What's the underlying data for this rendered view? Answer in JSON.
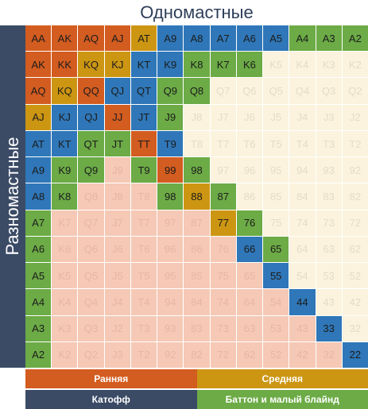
{
  "header": {
    "top_title": "Одномастные",
    "side_title": "Разномастные"
  },
  "tiers": {
    "early": {
      "label": "Ранняя",
      "color": "#d35c20"
    },
    "middle": {
      "label": "Средняя",
      "color": "#cc9613"
    },
    "cutoff": {
      "label": "Катофф",
      "color": "#2f77b8"
    },
    "button": {
      "label": "Баттон и малый блайнд",
      "color": "#6cab46"
    }
  },
  "grid": {
    "rows": [
      {
        "cells": [
          {
            "label": "AA",
            "tier": "early"
          },
          {
            "label": "AK",
            "tier": "early"
          },
          {
            "label": "AQ",
            "tier": "early"
          },
          {
            "label": "AJ",
            "tier": "early"
          },
          {
            "label": "AT",
            "tier": "middle"
          },
          {
            "label": "A9",
            "tier": "cutoff"
          },
          {
            "label": "A8",
            "tier": "cutoff"
          },
          {
            "label": "A7",
            "tier": "cutoff"
          },
          {
            "label": "A6",
            "tier": "cutoff"
          },
          {
            "label": "A5",
            "tier": "cutoff"
          },
          {
            "label": "A4",
            "tier": "button"
          },
          {
            "label": "A3",
            "tier": "button"
          },
          {
            "label": "A2",
            "tier": "button"
          }
        ]
      },
      {
        "cells": [
          {
            "label": "AK",
            "tier": "early"
          },
          {
            "label": "KK",
            "tier": "early"
          },
          {
            "label": "KQ",
            "tier": "middle"
          },
          {
            "label": "KJ",
            "tier": "middle"
          },
          {
            "label": "KT",
            "tier": "cutoff"
          },
          {
            "label": "K9",
            "tier": "cutoff"
          },
          {
            "label": "K8",
            "tier": "button"
          },
          {
            "label": "K7",
            "tier": "button"
          },
          {
            "label": "K6",
            "tier": "button"
          },
          {
            "label": "K5",
            "tier": "foldsuited"
          },
          {
            "label": "K4",
            "tier": "foldsuited"
          },
          {
            "label": "K3",
            "tier": "foldsuited"
          },
          {
            "label": "K2",
            "tier": "foldsuited"
          }
        ]
      },
      {
        "cells": [
          {
            "label": "AQ",
            "tier": "early"
          },
          {
            "label": "KQ",
            "tier": "middle"
          },
          {
            "label": "QQ",
            "tier": "early"
          },
          {
            "label": "QJ",
            "tier": "cutoff"
          },
          {
            "label": "QT",
            "tier": "cutoff"
          },
          {
            "label": "Q9",
            "tier": "button"
          },
          {
            "label": "Q8",
            "tier": "button"
          },
          {
            "label": "Q7",
            "tier": "foldsuited"
          },
          {
            "label": "Q6",
            "tier": "foldsuited"
          },
          {
            "label": "Q5",
            "tier": "foldsuited"
          },
          {
            "label": "Q4",
            "tier": "foldsuited"
          },
          {
            "label": "Q3",
            "tier": "foldsuited"
          },
          {
            "label": "Q2",
            "tier": "foldsuited"
          }
        ]
      },
      {
        "cells": [
          {
            "label": "AJ",
            "tier": "middle"
          },
          {
            "label": "KJ",
            "tier": "cutoff"
          },
          {
            "label": "QJ",
            "tier": "cutoff"
          },
          {
            "label": "JJ",
            "tier": "early"
          },
          {
            "label": "JT",
            "tier": "cutoff"
          },
          {
            "label": "J9",
            "tier": "button"
          },
          {
            "label": "J8",
            "tier": "foldsuited"
          },
          {
            "label": "J7",
            "tier": "foldsuited"
          },
          {
            "label": "J6",
            "tier": "foldsuited"
          },
          {
            "label": "J5",
            "tier": "foldsuited"
          },
          {
            "label": "J4",
            "tier": "foldsuited"
          },
          {
            "label": "J3",
            "tier": "foldsuited"
          },
          {
            "label": "J2",
            "tier": "foldsuited"
          }
        ]
      },
      {
        "cells": [
          {
            "label": "AT",
            "tier": "cutoff"
          },
          {
            "label": "KT",
            "tier": "cutoff"
          },
          {
            "label": "QT",
            "tier": "button"
          },
          {
            "label": "JT",
            "tier": "button"
          },
          {
            "label": "TT",
            "tier": "early"
          },
          {
            "label": "T9",
            "tier": "cutoff"
          },
          {
            "label": "T8",
            "tier": "foldsuited"
          },
          {
            "label": "T7",
            "tier": "foldsuited"
          },
          {
            "label": "T6",
            "tier": "foldsuited"
          },
          {
            "label": "T5",
            "tier": "foldsuited"
          },
          {
            "label": "T4",
            "tier": "foldsuited"
          },
          {
            "label": "T3",
            "tier": "foldsuited"
          },
          {
            "label": "T2",
            "tier": "foldsuited"
          }
        ]
      },
      {
        "cells": [
          {
            "label": "A9",
            "tier": "cutoff"
          },
          {
            "label": "K9",
            "tier": "button"
          },
          {
            "label": "Q9",
            "tier": "button"
          },
          {
            "label": "J9",
            "tier": "foldoffsuit"
          },
          {
            "label": "T9",
            "tier": "button"
          },
          {
            "label": "99",
            "tier": "early"
          },
          {
            "label": "98",
            "tier": "button"
          },
          {
            "label": "97",
            "tier": "foldsuited"
          },
          {
            "label": "96",
            "tier": "foldsuited"
          },
          {
            "label": "95",
            "tier": "foldsuited"
          },
          {
            "label": "94",
            "tier": "foldsuited"
          },
          {
            "label": "93",
            "tier": "foldsuited"
          },
          {
            "label": "92",
            "tier": "foldsuited"
          }
        ]
      },
      {
        "cells": [
          {
            "label": "A8",
            "tier": "cutoff"
          },
          {
            "label": "K8",
            "tier": "button"
          },
          {
            "label": "Q8",
            "tier": "foldoffsuit"
          },
          {
            "label": "J8",
            "tier": "foldoffsuit"
          },
          {
            "label": "T8",
            "tier": "foldoffsuit"
          },
          {
            "label": "98",
            "tier": "button"
          },
          {
            "label": "88",
            "tier": "middle"
          },
          {
            "label": "87",
            "tier": "button"
          },
          {
            "label": "86",
            "tier": "foldsuited"
          },
          {
            "label": "85",
            "tier": "foldsuited"
          },
          {
            "label": "84",
            "tier": "foldsuited"
          },
          {
            "label": "83",
            "tier": "foldsuited"
          },
          {
            "label": "82",
            "tier": "foldsuited"
          }
        ]
      },
      {
        "cells": [
          {
            "label": "A7",
            "tier": "button"
          },
          {
            "label": "K7",
            "tier": "foldoffsuit"
          },
          {
            "label": "Q7",
            "tier": "foldoffsuit"
          },
          {
            "label": "J7",
            "tier": "foldoffsuit"
          },
          {
            "label": "T7",
            "tier": "foldoffsuit"
          },
          {
            "label": "97",
            "tier": "foldoffsuit"
          },
          {
            "label": "87",
            "tier": "foldoffsuit"
          },
          {
            "label": "77",
            "tier": "middle"
          },
          {
            "label": "76",
            "tier": "button"
          },
          {
            "label": "75",
            "tier": "foldsuited"
          },
          {
            "label": "74",
            "tier": "foldsuited"
          },
          {
            "label": "73",
            "tier": "foldsuited"
          },
          {
            "label": "72",
            "tier": "foldsuited"
          }
        ]
      },
      {
        "cells": [
          {
            "label": "A6",
            "tier": "button"
          },
          {
            "label": "K6",
            "tier": "foldoffsuit"
          },
          {
            "label": "Q6",
            "tier": "foldoffsuit"
          },
          {
            "label": "J6",
            "tier": "foldoffsuit"
          },
          {
            "label": "T6",
            "tier": "foldoffsuit"
          },
          {
            "label": "96",
            "tier": "foldoffsuit"
          },
          {
            "label": "86",
            "tier": "foldoffsuit"
          },
          {
            "label": "76",
            "tier": "foldoffsuit"
          },
          {
            "label": "66",
            "tier": "cutoff"
          },
          {
            "label": "65",
            "tier": "button"
          },
          {
            "label": "64",
            "tier": "foldsuited"
          },
          {
            "label": "63",
            "tier": "foldsuited"
          },
          {
            "label": "62",
            "tier": "foldsuited"
          }
        ]
      },
      {
        "cells": [
          {
            "label": "A5",
            "tier": "button"
          },
          {
            "label": "K5",
            "tier": "foldoffsuit"
          },
          {
            "label": "Q5",
            "tier": "foldoffsuit"
          },
          {
            "label": "J5",
            "tier": "foldoffsuit"
          },
          {
            "label": "T5",
            "tier": "foldoffsuit"
          },
          {
            "label": "95",
            "tier": "foldoffsuit"
          },
          {
            "label": "85",
            "tier": "foldoffsuit"
          },
          {
            "label": "75",
            "tier": "foldoffsuit"
          },
          {
            "label": "65",
            "tier": "foldoffsuit"
          },
          {
            "label": "55",
            "tier": "cutoff"
          },
          {
            "label": "54",
            "tier": "foldsuited"
          },
          {
            "label": "53",
            "tier": "foldsuited"
          },
          {
            "label": "52",
            "tier": "foldsuited"
          }
        ]
      },
      {
        "cells": [
          {
            "label": "A4",
            "tier": "button"
          },
          {
            "label": "K4",
            "tier": "foldoffsuit"
          },
          {
            "label": "Q4",
            "tier": "foldoffsuit"
          },
          {
            "label": "J4",
            "tier": "foldoffsuit"
          },
          {
            "label": "T4",
            "tier": "foldoffsuit"
          },
          {
            "label": "94",
            "tier": "foldoffsuit"
          },
          {
            "label": "84",
            "tier": "foldoffsuit"
          },
          {
            "label": "74",
            "tier": "foldoffsuit"
          },
          {
            "label": "64",
            "tier": "foldoffsuit"
          },
          {
            "label": "54",
            "tier": "foldoffsuit"
          },
          {
            "label": "44",
            "tier": "cutoff"
          },
          {
            "label": "43",
            "tier": "foldsuited"
          },
          {
            "label": "42",
            "tier": "foldsuited"
          }
        ]
      },
      {
        "cells": [
          {
            "label": "A3",
            "tier": "button"
          },
          {
            "label": "K3",
            "tier": "foldoffsuit"
          },
          {
            "label": "Q3",
            "tier": "foldoffsuit"
          },
          {
            "label": "J2",
            "tier": "foldoffsuit"
          },
          {
            "label": "T3",
            "tier": "foldoffsuit"
          },
          {
            "label": "93",
            "tier": "foldoffsuit"
          },
          {
            "label": "83",
            "tier": "foldoffsuit"
          },
          {
            "label": "73",
            "tier": "foldoffsuit"
          },
          {
            "label": "63",
            "tier": "foldoffsuit"
          },
          {
            "label": "53",
            "tier": "foldoffsuit"
          },
          {
            "label": "43",
            "tier": "foldoffsuit"
          },
          {
            "label": "33",
            "tier": "cutoff"
          },
          {
            "label": "32",
            "tier": "foldsuited"
          }
        ]
      },
      {
        "cells": [
          {
            "label": "A2",
            "tier": "button"
          },
          {
            "label": "K2",
            "tier": "foldoffsuit"
          },
          {
            "label": "Q2",
            "tier": "foldoffsuit"
          },
          {
            "label": "J3",
            "tier": "foldoffsuit"
          },
          {
            "label": "T2",
            "tier": "foldoffsuit"
          },
          {
            "label": "92",
            "tier": "foldoffsuit"
          },
          {
            "label": "82",
            "tier": "foldoffsuit"
          },
          {
            "label": "72",
            "tier": "foldoffsuit"
          },
          {
            "label": "62",
            "tier": "foldoffsuit"
          },
          {
            "label": "52",
            "tier": "foldoffsuit"
          },
          {
            "label": "42",
            "tier": "foldoffsuit"
          },
          {
            "label": "32",
            "tier": "foldoffsuit"
          },
          {
            "label": "22",
            "tier": "cutoff"
          }
        ]
      }
    ]
  }
}
